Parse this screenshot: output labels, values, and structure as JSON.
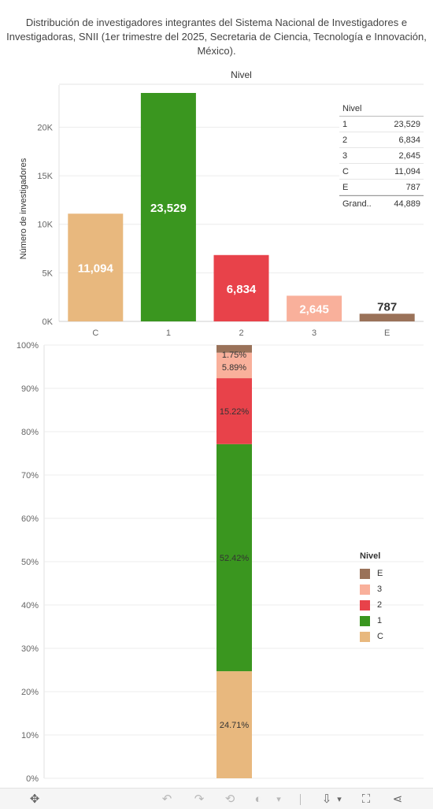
{
  "title": "Distribución de investigadores integrantes del Sistema Nacional de Investigadores e Investigadoras, SNII (1er trimestre del  2025, Secretaria de Ciencia, Tecnología e Innovación, México).",
  "colors": {
    "C": "#e8b87e",
    "1": "#3a961f",
    "2": "#e8424a",
    "3": "#f9b09b",
    "E": "#9a7259"
  },
  "chart_data": [
    {
      "type": "bar",
      "title": "Nivel",
      "xlabel": "",
      "ylabel": "Número de investigadores",
      "categories": [
        "C",
        "1",
        "2",
        "3",
        "E"
      ],
      "values": [
        11094,
        23529,
        6834,
        2645,
        787
      ],
      "data_labels": [
        "11,094",
        "23,529",
        "6,834",
        "2,645",
        "787"
      ],
      "yticks": [
        "0K",
        "5K",
        "10K",
        "15K",
        "20K"
      ],
      "ytick_values": [
        0,
        5000,
        10000,
        15000,
        20000
      ],
      "ylim": [
        0,
        23529
      ],
      "grid": true
    },
    {
      "type": "bar",
      "stacked": true,
      "title": "",
      "xlabel": "",
      "ylabel": "",
      "series": [
        {
          "name": "C",
          "values": [
            24.71
          ],
          "label": "24.71%"
        },
        {
          "name": "1",
          "values": [
            52.42
          ],
          "label": "52.42%"
        },
        {
          "name": "2",
          "values": [
            15.22
          ],
          "label": "15.22%"
        },
        {
          "name": "3",
          "values": [
            5.89
          ],
          "label": "5.89%"
        },
        {
          "name": "E",
          "values": [
            1.75
          ],
          "label": "1.75%"
        }
      ],
      "yticks": [
        "0%",
        "10%",
        "20%",
        "30%",
        "40%",
        "50%",
        "60%",
        "70%",
        "80%",
        "90%",
        "100%"
      ],
      "ytick_values": [
        0,
        10,
        20,
        30,
        40,
        50,
        60,
        70,
        80,
        90,
        100
      ],
      "ylim": [
        0,
        100
      ],
      "grid": true,
      "legend_position": "right"
    }
  ],
  "summary_table": {
    "header": "Nivel",
    "rows": [
      {
        "label": "1",
        "value": "23,529"
      },
      {
        "label": "2",
        "value": "6,834"
      },
      {
        "label": "3",
        "value": "2,645"
      },
      {
        "label": "C",
        "value": "11,094"
      },
      {
        "label": "E",
        "value": "787"
      }
    ],
    "total": {
      "label": "Grand..",
      "value": "44,889"
    }
  },
  "legend": {
    "title": "Nivel",
    "items": [
      "E",
      "3",
      "2",
      "1",
      "C"
    ]
  },
  "toolbar": {
    "move_icon": "move-icon",
    "undo_icon": "undo-icon",
    "redo_icon": "redo-icon",
    "revert_icon": "revert-icon",
    "pause_icon": "pause-icon",
    "download_icon": "download-icon",
    "fullscreen_icon": "fullscreen-icon",
    "share_icon": "share-icon",
    "undo_glyph": "↶",
    "redo_glyph": "↷",
    "revert_glyph": "⟲",
    "pause_glyph": "◐",
    "dropdown_glyph": "▾",
    "download_glyph": "⇩",
    "fullscreen_glyph": "⛶",
    "share_glyph": "⋖"
  }
}
